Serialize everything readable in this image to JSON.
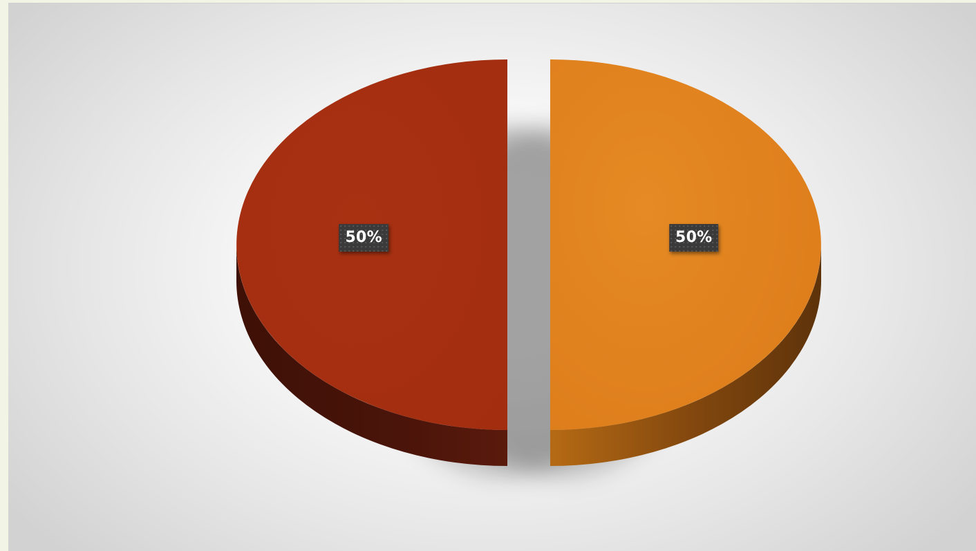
{
  "chart_data": {
    "type": "pie",
    "style": "3d-exploded",
    "categories": [
      "",
      ""
    ],
    "values": [
      50,
      50
    ],
    "data_labels": [
      "50%",
      "50%"
    ],
    "colors": [
      "#e1801c",
      "#a52f10"
    ],
    "side_colors": [
      "#8a4d10",
      "#4a140a"
    ],
    "title": "",
    "legend": "none"
  }
}
